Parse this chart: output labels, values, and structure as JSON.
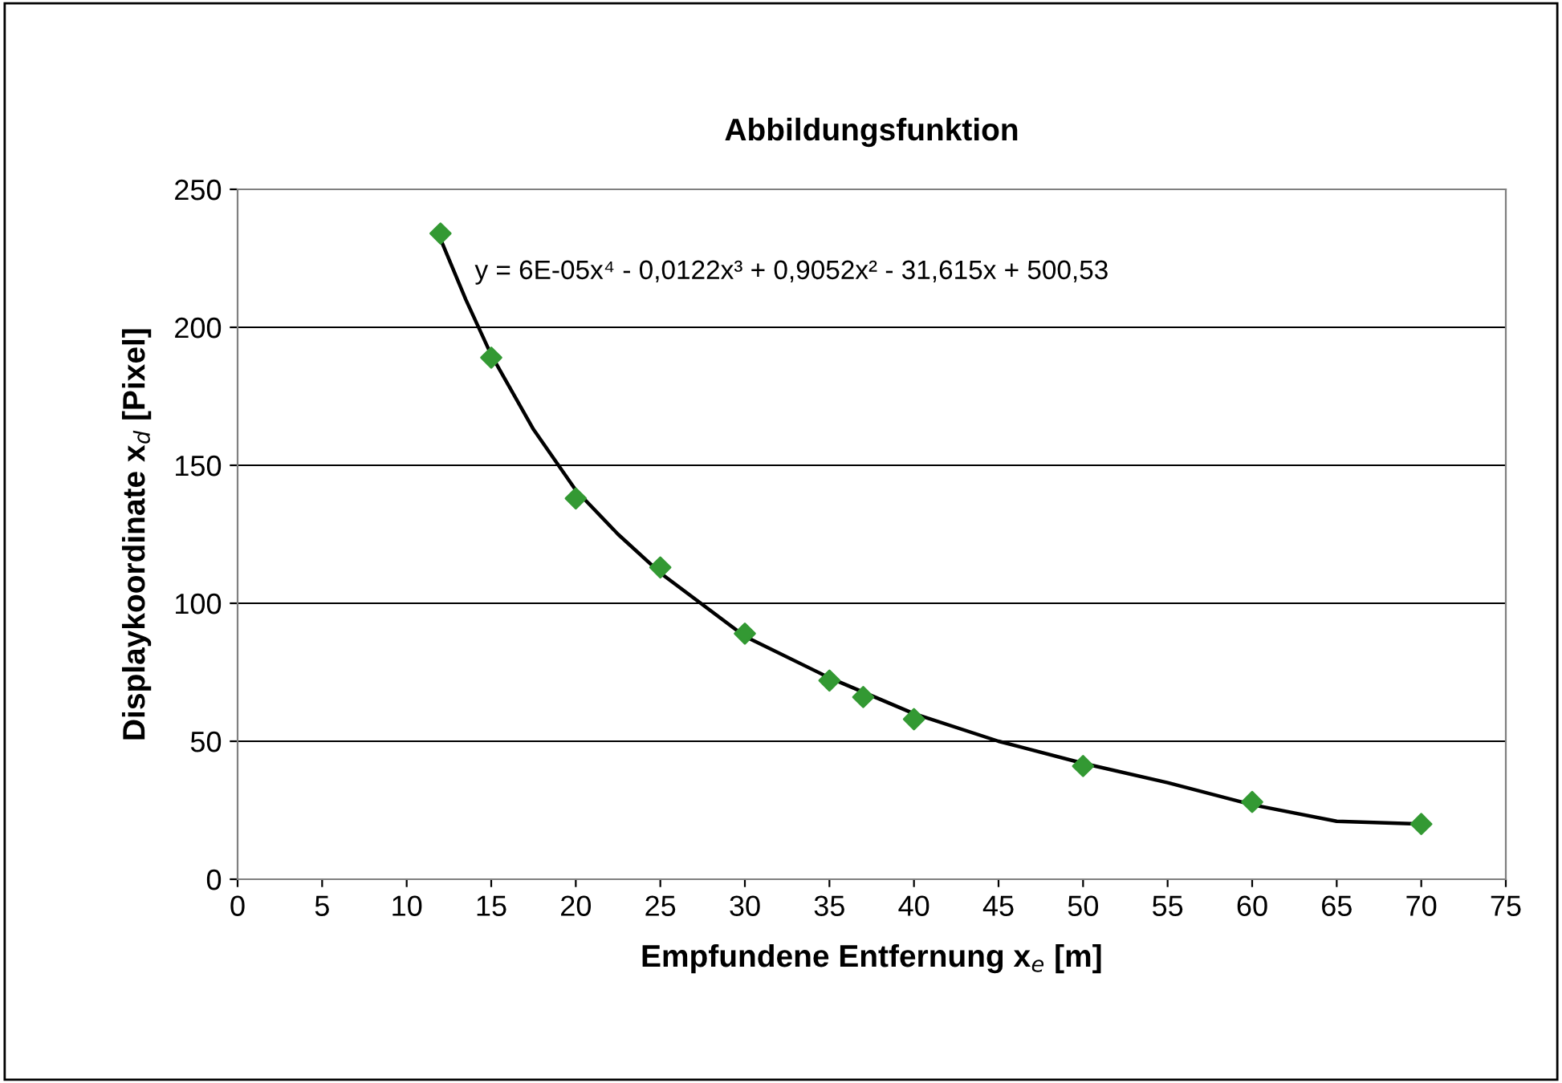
{
  "chart_data": {
    "type": "scatter",
    "title": "Abbildungsfunktion",
    "xlabel": "Empfundene Entfernung x$_{e}$ [m]",
    "ylabel": "Displaykoordinate x$_{d}$ [Pixel]",
    "xlim": [
      0,
      75
    ],
    "xticks": [
      0,
      5,
      10,
      15,
      20,
      25,
      30,
      35,
      40,
      45,
      50,
      55,
      60,
      65,
      70,
      75
    ],
    "ylim": [
      0,
      250
    ],
    "yticks": [
      0,
      50,
      100,
      150,
      200,
      250
    ],
    "grid": "y",
    "series": [
      {
        "marker": "diamond",
        "color": "#339933",
        "x": [
          12,
          15,
          20,
          25,
          30,
          35,
          37,
          40,
          50,
          60,
          70
        ],
        "values": [
          234,
          189,
          138,
          113,
          89,
          72,
          66,
          58,
          41,
          28,
          20
        ]
      },
      {
        "type": "line",
        "color": "#000000",
        "x": [
          12,
          13.5,
          15,
          17.5,
          20,
          22.5,
          25,
          30,
          35,
          40,
          45,
          50,
          55,
          60,
          65,
          70
        ],
        "values": [
          232,
          210,
          190,
          163,
          141,
          125,
          111,
          88,
          73,
          60,
          50,
          42,
          35,
          27,
          21,
          20
        ]
      }
    ],
    "annotations": [
      "y = 6E-05x⁴ - 0,0122x³ + 0,9052x² - 31,615x + 500,53"
    ]
  }
}
